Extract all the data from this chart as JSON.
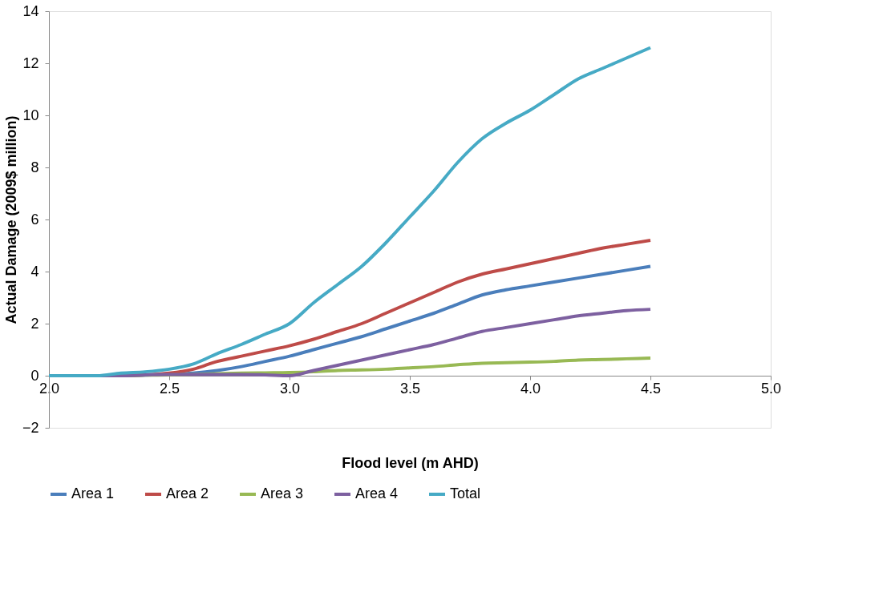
{
  "chart_data": {
    "type": "line",
    "xlabel": "Flood level (m AHD)",
    "ylabel": "Actual  Damage  (2009$ million)",
    "x": [
      2.0,
      2.1,
      2.2,
      2.3,
      2.4,
      2.5,
      2.6,
      2.7,
      2.8,
      2.9,
      3.0,
      3.1,
      3.2,
      3.3,
      3.4,
      3.5,
      3.6,
      3.7,
      3.8,
      3.9,
      4.0,
      4.1,
      4.2,
      4.3,
      4.4,
      4.5
    ],
    "series": [
      {
        "name": "Area 1",
        "color": "#4a7ebb",
        "values": [
          0,
          0,
          0,
          0,
          0.02,
          0.05,
          0.1,
          0.2,
          0.35,
          0.55,
          0.75,
          1.0,
          1.25,
          1.5,
          1.8,
          2.1,
          2.4,
          2.75,
          3.1,
          3.3,
          3.45,
          3.6,
          3.75,
          3.9,
          4.05,
          4.2
        ]
      },
      {
        "name": "Area 2",
        "color": "#be4b48",
        "values": [
          null,
          null,
          null,
          0,
          0.03,
          0.1,
          0.25,
          0.55,
          0.75,
          0.95,
          1.15,
          1.4,
          1.7,
          2.0,
          2.4,
          2.8,
          3.2,
          3.6,
          3.9,
          4.1,
          4.3,
          4.5,
          4.7,
          4.9,
          5.05,
          5.2
        ]
      },
      {
        "name": "Area 3",
        "color": "#98b954",
        "values": [
          null,
          null,
          null,
          0,
          0.02,
          0.03,
          0.05,
          0.08,
          0.1,
          0.11,
          0.12,
          0.15,
          0.2,
          0.22,
          0.25,
          0.3,
          0.35,
          0.42,
          0.48,
          0.5,
          0.52,
          0.55,
          0.6,
          0.62,
          0.65,
          0.68
        ]
      },
      {
        "name": "Area 4",
        "color": "#7d60a0",
        "values": [
          0,
          0,
          0,
          0,
          0.03,
          0.05,
          0.05,
          0.05,
          0.05,
          0.03,
          0,
          0.2,
          0.4,
          0.6,
          0.8,
          1.0,
          1.2,
          1.45,
          1.7,
          1.85,
          2.0,
          2.15,
          2.3,
          2.4,
          2.5,
          2.55
        ]
      },
      {
        "name": "Total",
        "color": "#46aac5",
        "values": [
          0,
          0,
          0,
          0.1,
          0.15,
          0.25,
          0.45,
          0.85,
          1.2,
          1.6,
          2.0,
          2.8,
          3.5,
          4.2,
          5.1,
          6.1,
          7.1,
          8.2,
          9.1,
          9.7,
          10.2,
          10.8,
          11.4,
          11.8,
          12.2,
          12.6
        ]
      }
    ],
    "xlim": [
      2.0,
      5.0
    ],
    "xticks": [
      {
        "value": 2.0,
        "label": "2.0"
      },
      {
        "value": 2.5,
        "label": "2.5"
      },
      {
        "value": 3.0,
        "label": "3.0"
      },
      {
        "value": 3.5,
        "label": "3.5"
      },
      {
        "value": 4.0,
        "label": "4.0"
      },
      {
        "value": 4.5,
        "label": "4.5"
      },
      {
        "value": 5.0,
        "label": "5.0"
      }
    ],
    "ylim": [
      -2,
      14
    ],
    "yticks": [
      -2,
      0,
      2,
      4,
      6,
      8,
      10,
      12,
      14
    ],
    "grid": false,
    "legend": "bottom",
    "marker": "none",
    "line_style": "solid"
  }
}
